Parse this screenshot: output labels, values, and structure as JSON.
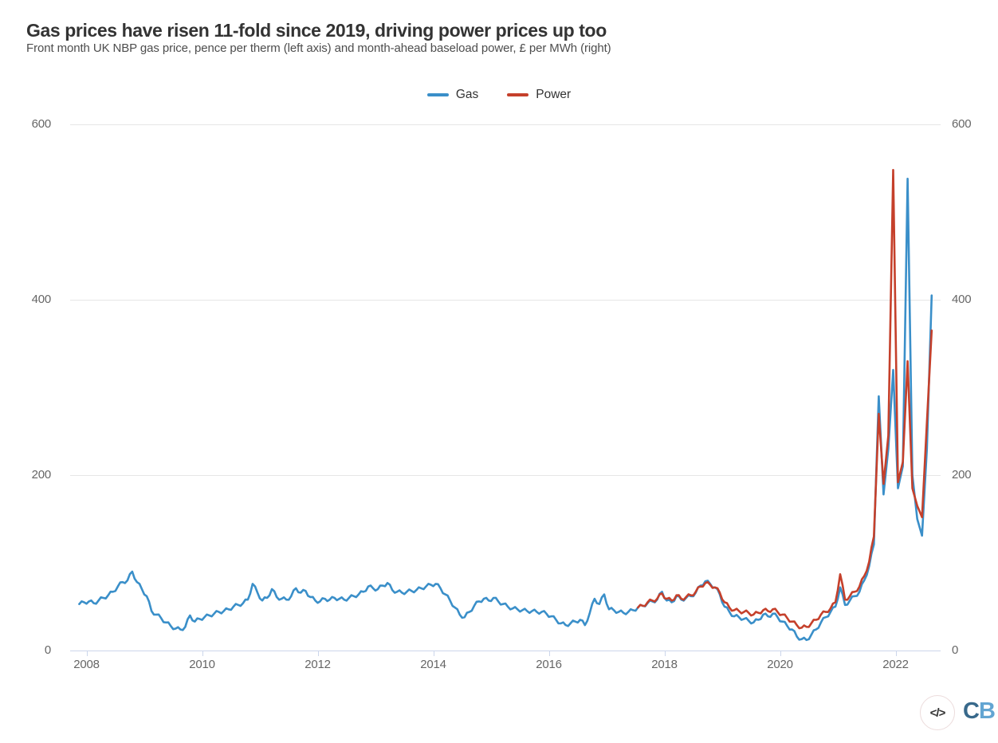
{
  "header": {
    "title": "Gas prices have risen 11-fold since 2019, driving power prices up too",
    "subtitle": "Front month UK NBP gas price, pence per therm (left axis) and month-ahead baseload power, £ per MWh (right)"
  },
  "footer": {
    "embed_icon": "</>",
    "logo_c": "C",
    "logo_b": "B"
  },
  "chart_data": {
    "type": "line",
    "title": "Gas prices have risen 11-fold since 2019, driving power prices up too",
    "subtitle": "Front month UK NBP gas price, pence per therm (left axis) and month-ahead baseload power, £ per MWh (right)",
    "legend_position": "top-center",
    "grid": "horizontal",
    "x_tick_labels": [
      "2008",
      "2010",
      "2012",
      "2014",
      "2016",
      "2018",
      "2020",
      "2022"
    ],
    "x_tick_years": [
      2008,
      2010,
      2012,
      2014,
      2016,
      2018,
      2020,
      2022
    ],
    "y_tick_labels": [
      "0",
      "200",
      "400",
      "600"
    ],
    "y_tick_values": [
      0,
      200,
      400,
      600
    ],
    "ylim_left": [
      0,
      600
    ],
    "ylim_right": [
      0,
      600
    ],
    "xlim_years": [
      2007.8,
      2022.78
    ],
    "left_axis_units": "pence per therm",
    "right_axis_units": "£ per MWh",
    "series": [
      {
        "name": "Gas",
        "color": "#3a8fc9",
        "axis": "left",
        "start_year": 2007,
        "start_month": 11,
        "monthly_values": [
          53,
          55,
          56,
          54,
          57,
          60,
          63,
          67,
          73,
          78,
          80,
          90,
          78,
          70,
          62,
          45,
          41,
          37,
          32,
          28,
          25,
          24,
          27,
          40,
          33,
          36,
          38,
          40,
          42,
          44,
          45,
          47,
          50,
          52,
          54,
          58,
          76,
          66,
          57,
          60,
          70,
          61,
          59,
          58,
          62,
          71,
          66,
          68,
          61,
          57,
          56,
          59,
          58,
          60,
          59,
          58,
          60,
          62,
          64,
          67,
          73,
          71,
          70,
          74,
          77,
          69,
          67,
          66,
          67,
          68,
          69,
          71,
          73,
          75,
          76,
          71,
          64,
          57,
          49,
          41,
          38,
          44,
          51,
          56,
          59,
          57,
          60,
          56,
          53,
          50,
          48,
          47,
          46,
          45,
          45,
          44,
          44,
          42,
          39,
          35,
          31,
          29,
          31,
          33,
          35,
          29,
          43,
          59,
          53,
          64,
          47,
          46,
          44,
          43,
          44,
          46,
          49,
          51,
          54,
          56,
          58,
          67,
          57,
          55,
          62,
          58,
          60,
          62,
          66,
          74,
          79,
          76,
          72,
          64,
          50,
          44,
          39,
          38,
          36,
          34,
          32,
          35,
          41,
          39,
          42,
          38,
          33,
          28,
          24,
          16,
          13,
          12,
          18,
          24,
          32,
          38,
          44,
          50,
          72,
          52,
          57,
          62,
          67,
          80,
          96,
          121,
          290,
          178,
          230,
          320,
          185,
          210,
          538,
          200,
          150,
          131,
          230,
          405
        ]
      },
      {
        "name": "Power",
        "color": "#c5402b",
        "axis": "right",
        "start_year": 2017,
        "start_month": 7,
        "monthly_values": [
          49,
          51,
          55,
          57,
          59,
          65,
          59,
          57,
          63,
          59,
          61,
          63,
          67,
          73,
          77,
          75,
          72,
          66,
          55,
          49,
          46,
          45,
          44,
          43,
          41,
          43,
          46,
          45,
          47,
          44,
          41,
          37,
          33,
          29,
          26,
          27,
          31,
          35,
          41,
          44,
          48,
          55,
          87,
          58,
          62,
          67,
          73,
          85,
          101,
          130,
          270,
          190,
          245,
          548,
          192,
          215,
          330,
          185,
          165,
          152,
          260,
          365
        ]
      }
    ]
  }
}
